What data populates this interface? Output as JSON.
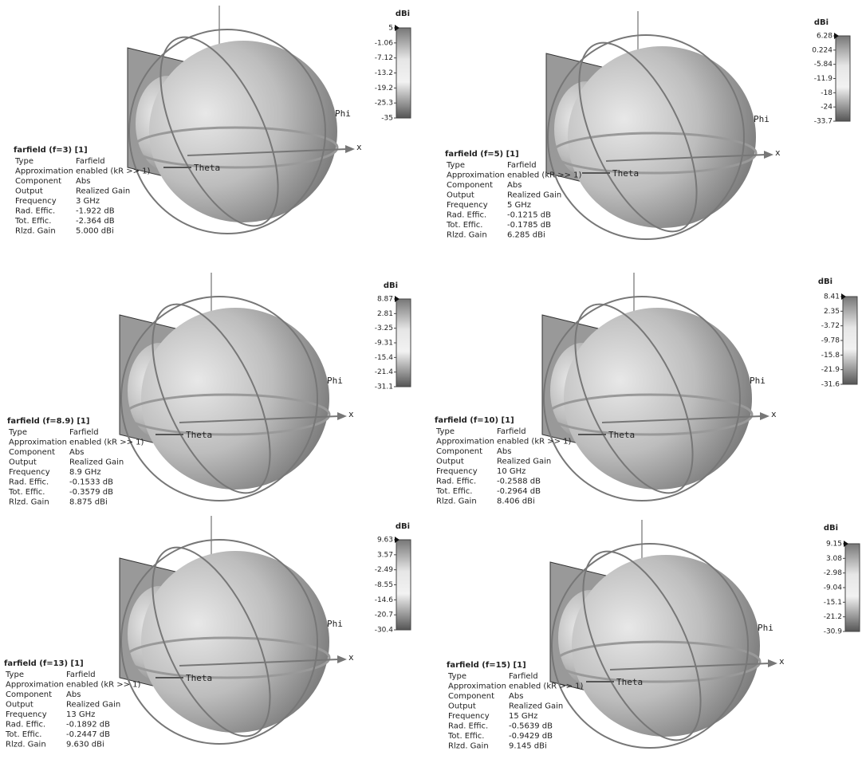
{
  "panels": [
    {
      "title": "farfield (f=3) [1]",
      "rows": [
        {
          "label": "Type",
          "value": "Farfield"
        },
        {
          "label": "Approximation",
          "value": "enabled (kR >> 1)"
        },
        {
          "label": "Component",
          "value": "Abs"
        },
        {
          "label": "Output",
          "value": "Realized Gain"
        },
        {
          "label": "Frequency",
          "value": "3 GHz"
        },
        {
          "label": "Rad. Effic.",
          "value": "-1.922 dB"
        },
        {
          "label": "Tot. Effic.",
          "value": "-2.364 dB"
        },
        {
          "label": "Rlzd. Gain",
          "value": "5.000 dBi"
        }
      ],
      "colorbar": {
        "unit": "dBi",
        "ticks": [
          "5",
          "-1.06",
          "-7.12",
          "-13.2",
          "-19.2",
          "-25.3",
          "-35"
        ]
      },
      "axes": {
        "phi": "Phi",
        "x": "x",
        "theta": "Theta"
      }
    },
    {
      "title": "farfield (f=5) [1]",
      "rows": [
        {
          "label": "Type",
          "value": "Farfield"
        },
        {
          "label": "Approximation",
          "value": "enabled (kR >> 1)"
        },
        {
          "label": "Component",
          "value": "Abs"
        },
        {
          "label": "Output",
          "value": "Realized Gain"
        },
        {
          "label": "Frequency",
          "value": "5 GHz"
        },
        {
          "label": "Rad. Effic.",
          "value": "-0.1215 dB"
        },
        {
          "label": "Tot. Effic.",
          "value": "-0.1785 dB"
        },
        {
          "label": "Rlzd. Gain",
          "value": "6.285 dBi"
        }
      ],
      "colorbar": {
        "unit": "dBi",
        "ticks": [
          "6.28",
          "0.224",
          "-5.84",
          "-11.9",
          "-18",
          "-24",
          "-33.7"
        ]
      },
      "axes": {
        "phi": "Phi",
        "x": "x",
        "theta": "Theta"
      }
    },
    {
      "title": "farfield (f=8.9) [1]",
      "rows": [
        {
          "label": "Type",
          "value": "Farfield"
        },
        {
          "label": "Approximation",
          "value": "enabled (kR >> 1)"
        },
        {
          "label": "Component",
          "value": "Abs"
        },
        {
          "label": "Output",
          "value": "Realized Gain"
        },
        {
          "label": "Frequency",
          "value": "8.9 GHz"
        },
        {
          "label": "Rad. Effic.",
          "value": "-0.1533 dB"
        },
        {
          "label": "Tot. Effic.",
          "value": "-0.3579 dB"
        },
        {
          "label": "Rlzd. Gain",
          "value": "8.875 dBi"
        }
      ],
      "colorbar": {
        "unit": "dBi",
        "ticks": [
          "8.87",
          "2.81",
          "-3.25",
          "-9.31",
          "-15.4",
          "-21.4",
          "-31.1"
        ]
      },
      "axes": {
        "phi": "Phi",
        "x": "x",
        "theta": "Theta"
      }
    },
    {
      "title": "farfield (f=10) [1]",
      "rows": [
        {
          "label": "Type",
          "value": "Farfield"
        },
        {
          "label": "Approximation",
          "value": "enabled (kR >> 1)"
        },
        {
          "label": "Component",
          "value": "Abs"
        },
        {
          "label": "Output",
          "value": "Realized Gain"
        },
        {
          "label": "Frequency",
          "value": "10 GHz"
        },
        {
          "label": "Rad. Effic.",
          "value": "-0.2588 dB"
        },
        {
          "label": "Tot. Effic.",
          "value": "-0.2964 dB"
        },
        {
          "label": "Rlzd. Gain",
          "value": "8.406 dBi"
        }
      ],
      "colorbar": {
        "unit": "dBi",
        "ticks": [
          "8.41",
          "2.35",
          "-3.72",
          "-9.78",
          "-15.8",
          "-21.9",
          "-31.6"
        ]
      },
      "axes": {
        "phi": "Phi",
        "x": "x",
        "theta": "Theta"
      }
    },
    {
      "title": "farfield (f=13) [1]",
      "rows": [
        {
          "label": "Type",
          "value": "Farfield"
        },
        {
          "label": "Approximation",
          "value": "enabled (kR >> 1)"
        },
        {
          "label": "Component",
          "value": "Abs"
        },
        {
          "label": "Output",
          "value": "Realized Gain"
        },
        {
          "label": "Frequency",
          "value": "13 GHz"
        },
        {
          "label": "Rad. Effic.",
          "value": "-0.1892 dB"
        },
        {
          "label": "Tot. Effic.",
          "value": "-0.2447 dB"
        },
        {
          "label": "Rlzd. Gain",
          "value": "9.630 dBi"
        }
      ],
      "colorbar": {
        "unit": "dBi",
        "ticks": [
          "9.63",
          "3.57",
          "-2.49",
          "-8.55",
          "-14.6",
          "-20.7",
          "-30.4"
        ]
      },
      "axes": {
        "phi": "Phi",
        "x": "x",
        "theta": "Theta"
      }
    },
    {
      "title": "farfield (f=15) [1]",
      "rows": [
        {
          "label": "Type",
          "value": "Farfield"
        },
        {
          "label": "Approximation",
          "value": "enabled (kR >> 1)"
        },
        {
          "label": "Component",
          "value": "Abs"
        },
        {
          "label": "Output",
          "value": "Realized Gain"
        },
        {
          "label": "Frequency",
          "value": "15 GHz"
        },
        {
          "label": "Rad. Effic.",
          "value": "-0.5639 dB"
        },
        {
          "label": "Tot. Effic.",
          "value": "-0.9429 dB"
        },
        {
          "label": "Rlzd. Gain",
          "value": "9.145 dBi"
        }
      ],
      "colorbar": {
        "unit": "dBi",
        "ticks": [
          "9.15",
          "3.08",
          "-2.98",
          "-9.04",
          "-15.1",
          "-21.2",
          "-30.9"
        ]
      },
      "axes": {
        "phi": "Phi",
        "x": "x",
        "theta": "Theta"
      }
    }
  ]
}
